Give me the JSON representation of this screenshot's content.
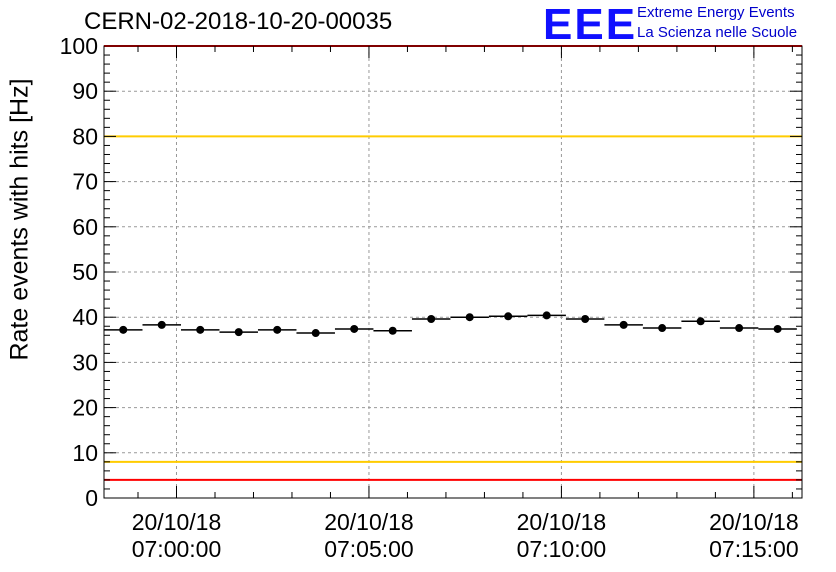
{
  "header": {
    "title": "CERN-02-2018-10-20-00035",
    "logo_text": "EEE",
    "logo_line1": "Extreme Energy Events",
    "logo_line2": "La Scienza nelle Scuole"
  },
  "colors": {
    "red_line": "#ff0000",
    "yellow_line": "#ffcc00",
    "marker": "#000000",
    "grid": "#999999",
    "logo": "#1010ff"
  },
  "chart_data": {
    "type": "scatter",
    "title": "CERN-02-2018-10-20-00035",
    "xlabel": "",
    "ylabel": "Rate events with hits [Hz]",
    "ylim": [
      0,
      100
    ],
    "xlim": [
      "06:58:07",
      "07:16:15"
    ],
    "yticks": [
      0,
      10,
      20,
      30,
      40,
      50,
      60,
      70,
      80,
      90,
      100
    ],
    "xticks": [
      {
        "date": "20/10/18",
        "time": "07:00:00"
      },
      {
        "date": "20/10/18",
        "time": "07:05:00"
      },
      {
        "date": "20/10/18",
        "time": "07:10:00"
      },
      {
        "date": "20/10/18",
        "time": "07:15:00"
      }
    ],
    "grid": true,
    "bin_width_s": 60,
    "x": [
      "06:58:37",
      "06:59:37",
      "07:00:37",
      "07:01:37",
      "07:02:37",
      "07:03:37",
      "07:04:37",
      "07:05:37",
      "07:06:37",
      "07:07:37",
      "07:08:37",
      "07:09:37",
      "07:10:37",
      "07:11:37",
      "07:12:37",
      "07:13:37",
      "07:14:37",
      "07:15:37"
    ],
    "values": [
      37.2,
      38.3,
      37.2,
      36.7,
      37.2,
      36.5,
      37.4,
      37.0,
      39.6,
      40.0,
      40.2,
      40.4,
      39.6,
      38.3,
      37.6,
      39.1,
      37.6,
      37.4
    ],
    "reference_lines": [
      {
        "y": 80,
        "color": "#ffcc00"
      },
      {
        "y": 8,
        "color": "#ffcc00"
      },
      {
        "y": 100,
        "color": "#ff0000"
      },
      {
        "y": 4,
        "color": "#ff0000"
      }
    ]
  }
}
